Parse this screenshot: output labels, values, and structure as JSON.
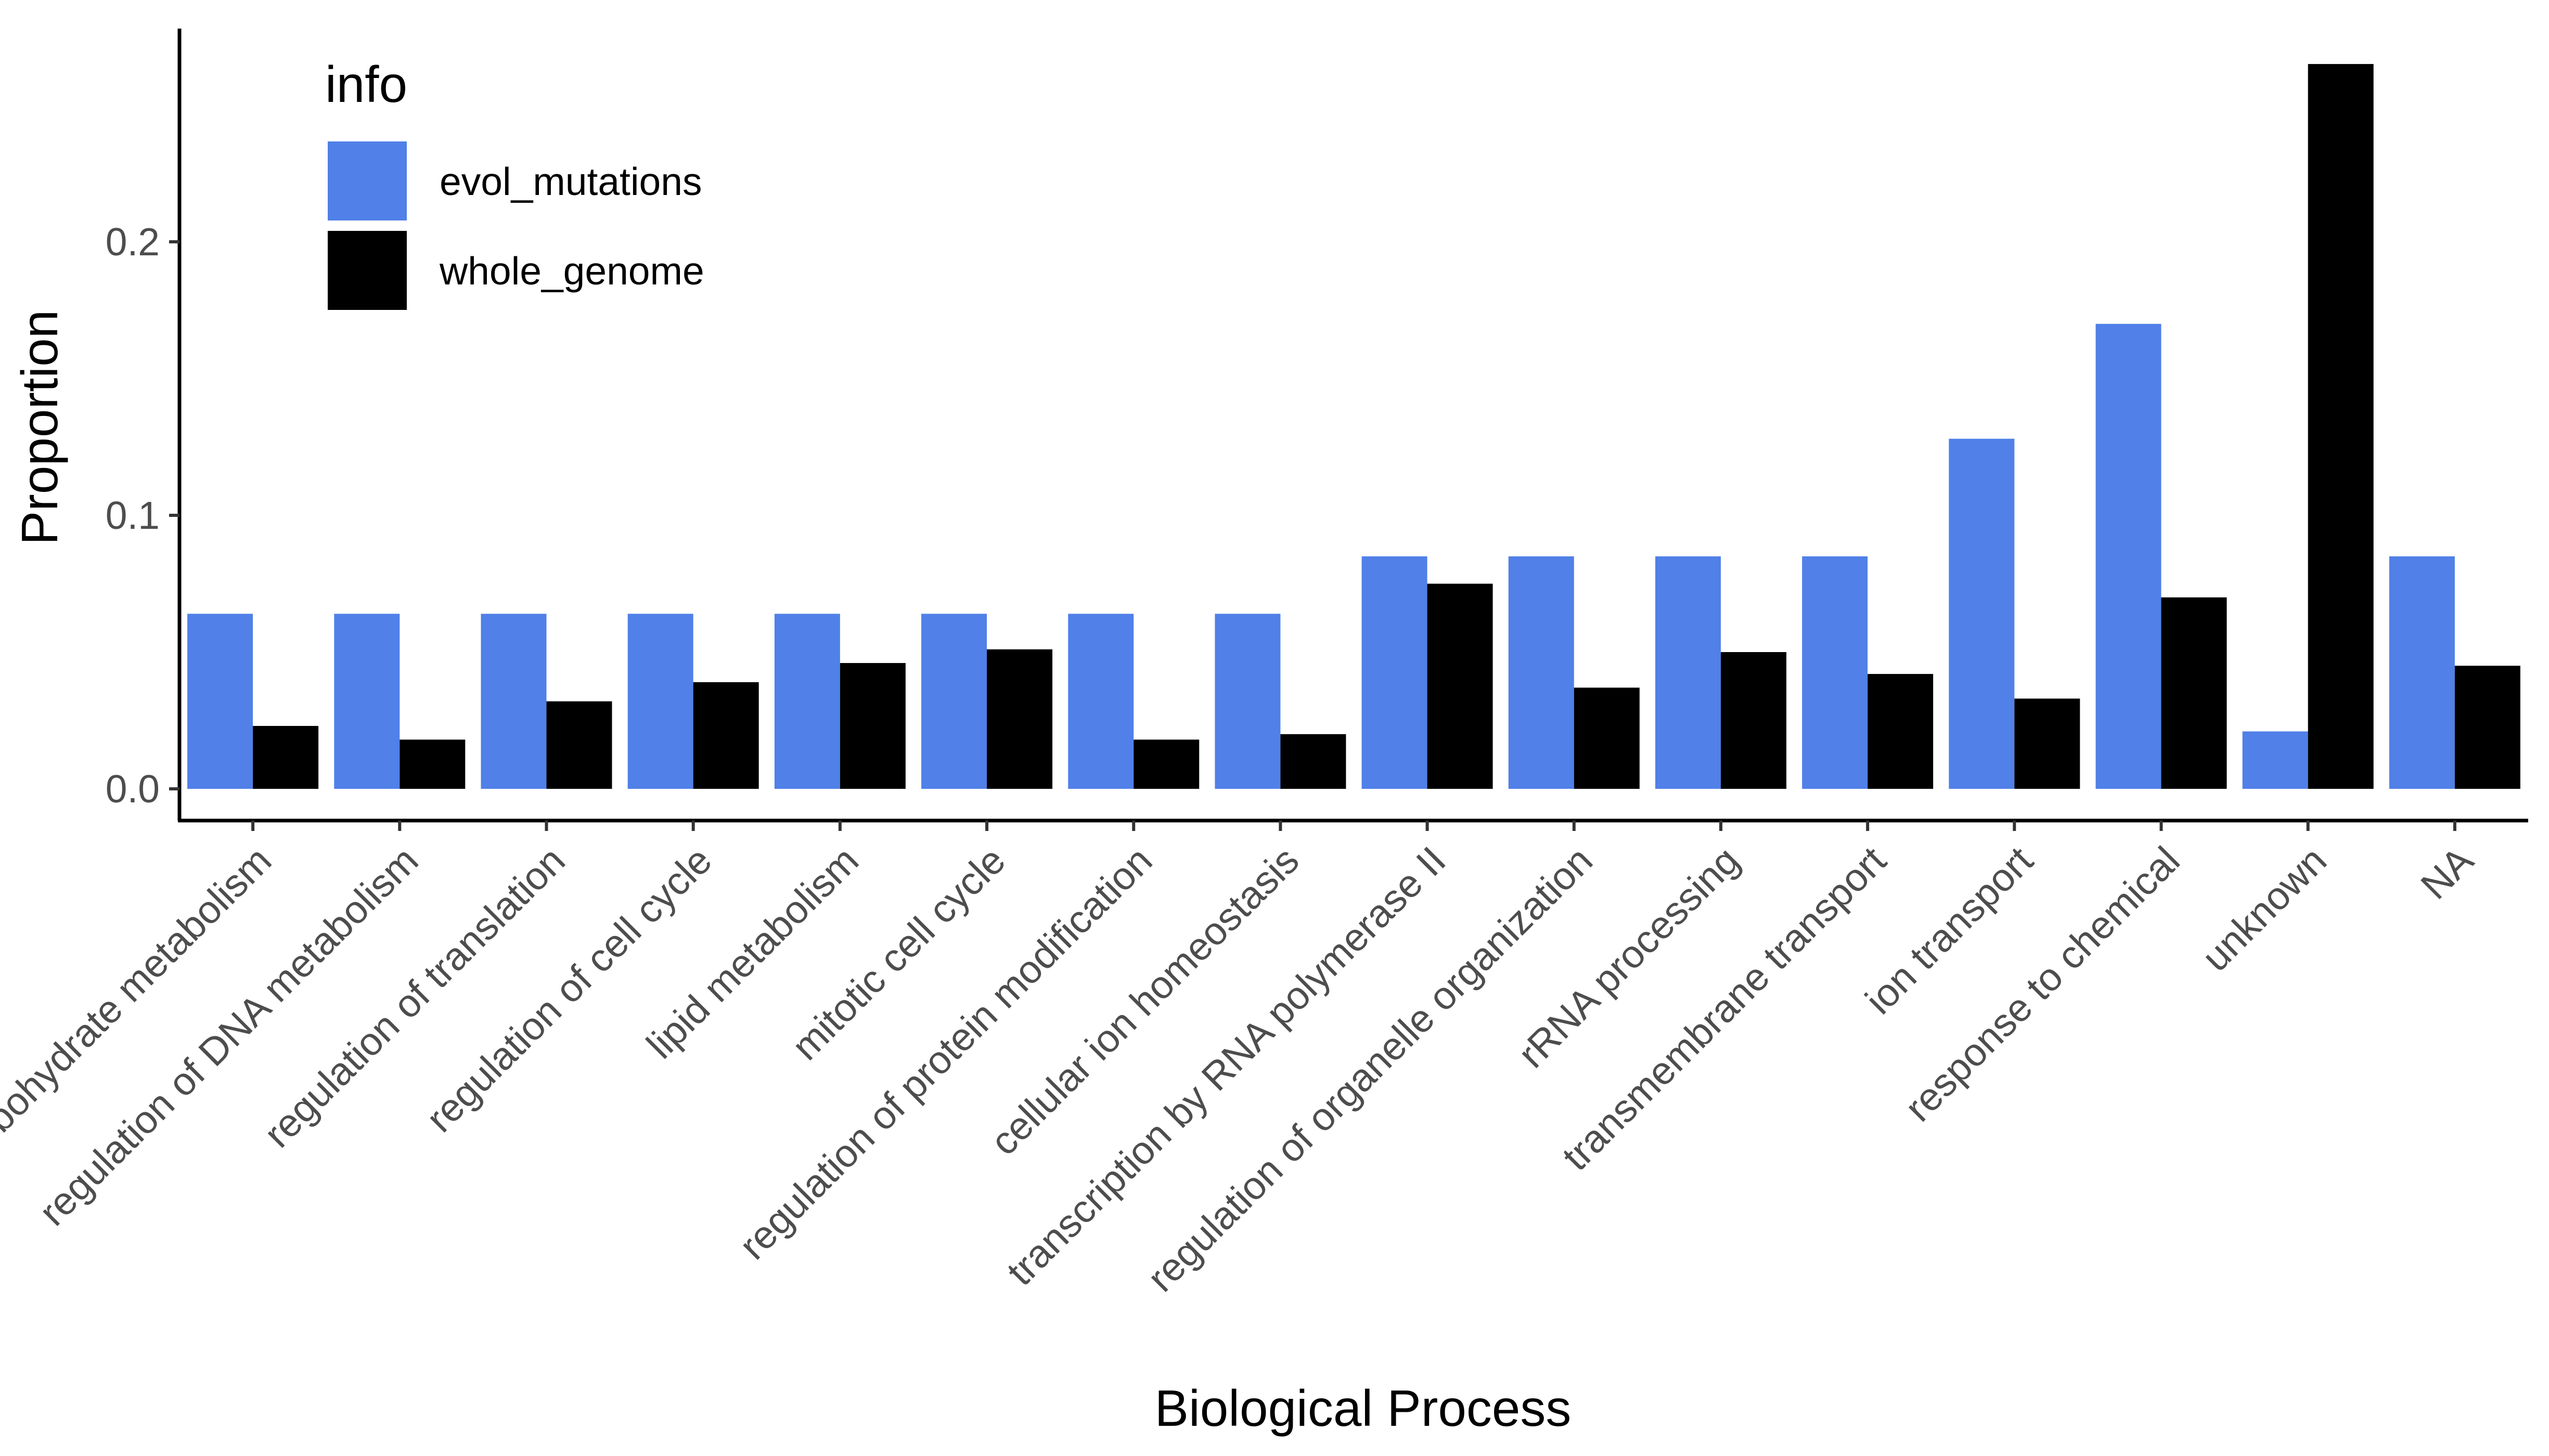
{
  "chart_data": {
    "type": "bar",
    "xlabel": "Biological Process",
    "ylabel": "Proportion",
    "ylim": [
      -0.012,
      0.278
    ],
    "yticks": [
      0.0,
      0.1,
      0.2
    ],
    "ytick_labels": [
      "0.0",
      "0.1",
      "0.2"
    ],
    "grid": false,
    "legend": {
      "title": "info",
      "position": "top-left"
    },
    "categories": [
      "carbohydrate metabolism",
      "regulation of DNA metabolism",
      "regulation of translation",
      "regulation of cell cycle",
      "lipid metabolism",
      "mitotic cell cycle",
      "regulation of protein modification",
      "cellular ion homeostasis",
      "transcription by RNA polymerase II",
      "regulation of organelle organization",
      "rRNA processing",
      "transmembrane transport",
      "ion transport",
      "response to chemical",
      "unknown",
      "NA"
    ],
    "series": [
      {
        "name": "evol_mutations",
        "color": "#5080e8",
        "values": [
          0.064,
          0.064,
          0.064,
          0.064,
          0.064,
          0.064,
          0.064,
          0.064,
          0.085,
          0.085,
          0.085,
          0.085,
          0.128,
          0.17,
          0.021,
          0.085
        ]
      },
      {
        "name": "whole_genome",
        "color": "#000000",
        "values": [
          0.023,
          0.018,
          0.032,
          0.039,
          0.046,
          0.051,
          0.018,
          0.02,
          0.075,
          0.037,
          0.05,
          0.042,
          0.033,
          0.07,
          0.265,
          0.045
        ]
      }
    ]
  }
}
